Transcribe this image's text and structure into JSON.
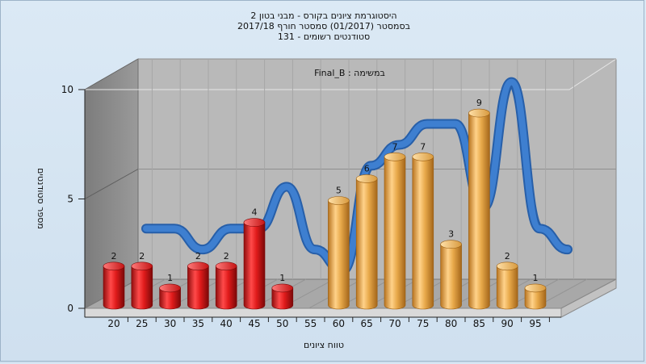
{
  "titles": {
    "line1": "היסטוגרמת ציונים בקורס - מבני בטון 2",
    "line2": "בסמסטר  (01/2017)  סמסטר חורף  2017/18",
    "line3": "סטודנטים רשומים - 131"
  },
  "chart_data": {
    "type": "bar",
    "title": "היסטוגרמת ציונים בקורס - מבני בטון 2",
    "annotation": "Final_B : במשימה",
    "xlabel": "טווח ציונים",
    "ylabel": "מספר סטודנטים",
    "ylim": [
      0,
      10
    ],
    "yticks": [
      0,
      5,
      10
    ],
    "categories": [
      "20",
      "25",
      "30",
      "35",
      "40",
      "45",
      "50",
      "55",
      "60",
      "65",
      "70",
      "75",
      "80",
      "85",
      "90",
      "95"
    ],
    "values": [
      2,
      2,
      1,
      2,
      2,
      4,
      1,
      null,
      5,
      6,
      7,
      7,
      3,
      9,
      2,
      1
    ],
    "bar_groups": [
      {
        "range": "20-50",
        "color": "#e01b1b"
      },
      {
        "range": "60-95",
        "color": "#e8a94a"
      }
    ],
    "curve_color": "#2f6fc0",
    "grid": true
  }
}
